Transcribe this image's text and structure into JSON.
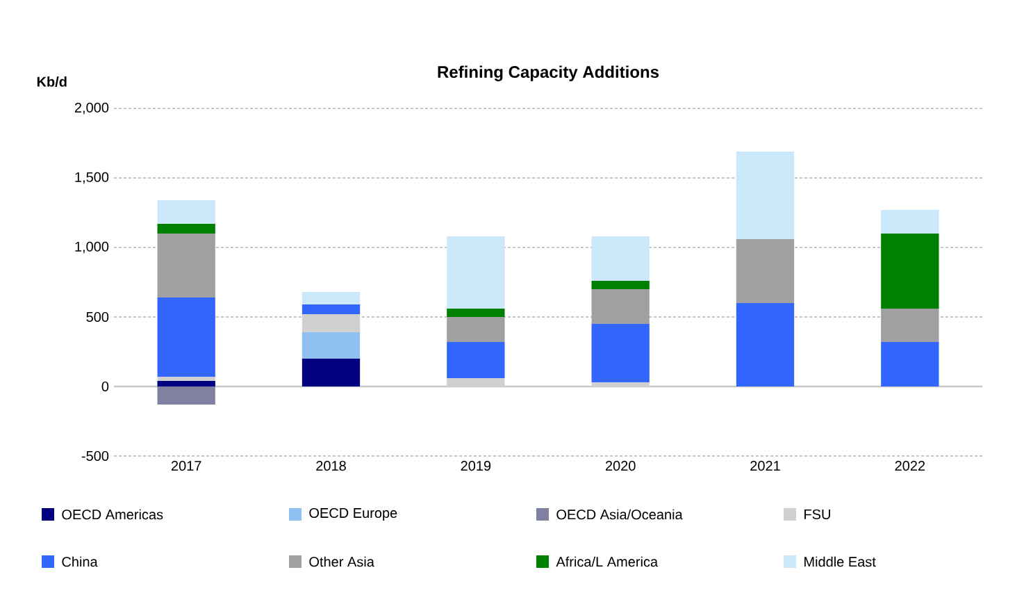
{
  "chart_data": {
    "type": "bar",
    "stacked": true,
    "title": "Refining Capacity Additions",
    "ylabel": "Kb/d",
    "categories": [
      "2017",
      "2018",
      "2019",
      "2020",
      "2021",
      "2022"
    ],
    "series": [
      {
        "name": "OECD Americas",
        "color": "#000080",
        "values": [
          40,
          200,
          0,
          0,
          0,
          0
        ]
      },
      {
        "name": "OECD Europe",
        "color": "#8fc1f0",
        "values": [
          0,
          190,
          0,
          0,
          0,
          0
        ]
      },
      {
        "name": "OECD Asia/Oceania",
        "color": "#8080a0",
        "values": [
          -130,
          0,
          0,
          0,
          0,
          0
        ]
      },
      {
        "name": "FSU",
        "color": "#d0d0d0",
        "values": [
          30,
          130,
          60,
          30,
          0,
          0
        ]
      },
      {
        "name": "China",
        "color": "#3366ff",
        "values": [
          570,
          70,
          260,
          420,
          600,
          320
        ]
      },
      {
        "name": "Other Asia",
        "color": "#a0a0a0",
        "values": [
          460,
          0,
          180,
          250,
          460,
          240
        ]
      },
      {
        "name": "Africa/L America",
        "color": "#008000",
        "values": [
          70,
          0,
          60,
          60,
          0,
          540
        ]
      },
      {
        "name": "Middle East",
        "color": "#cce8fb",
        "values": [
          170,
          90,
          520,
          320,
          630,
          170
        ]
      }
    ],
    "ylim": [
      -500,
      2000
    ],
    "yticks": [
      {
        "value": -500,
        "label": "-500"
      },
      0,
      500,
      {
        "value": 1000,
        "label": "1,000"
      },
      {
        "value": 1500,
        "label": "1,500"
      },
      {
        "value": 2000,
        "label": "2,000"
      }
    ],
    "ref_lines": [
      {
        "axis": "y",
        "value": 0,
        "color": "#c8c8c8"
      }
    ],
    "grid": "y",
    "legend": "bottom"
  }
}
